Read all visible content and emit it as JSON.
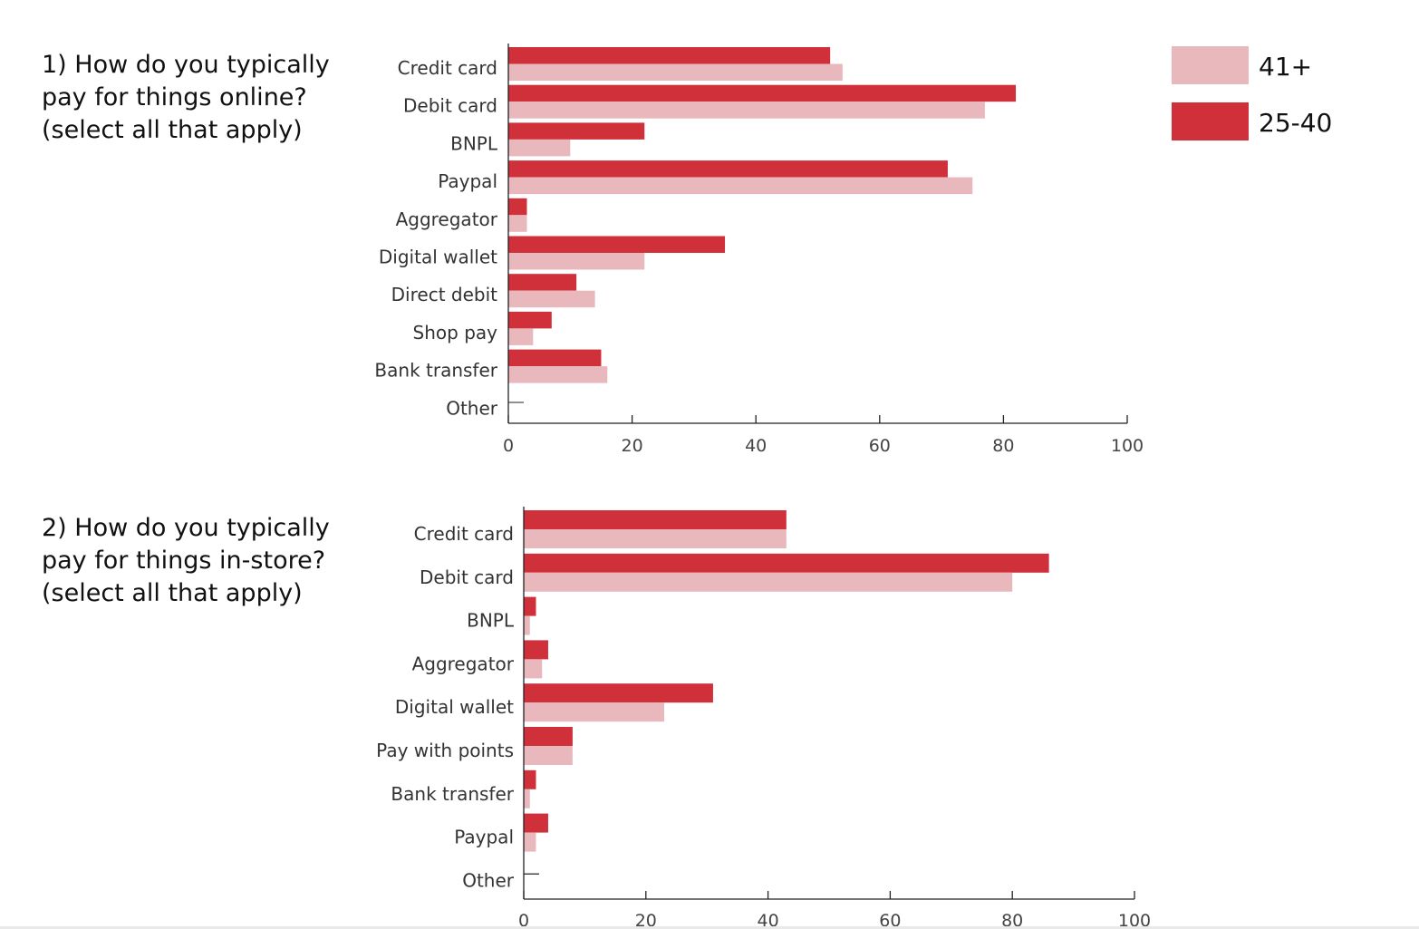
{
  "colors": {
    "series_25_40": "#d0303a",
    "series_41_plus": "#e8b8bd",
    "axis": "#222222"
  },
  "legend": [
    {
      "label": "41+",
      "color": "#e8b8bd"
    },
    {
      "label": "25-40",
      "color": "#d0303a"
    }
  ],
  "chart_data": [
    {
      "type": "bar",
      "orientation": "horizontal",
      "title_lines": [
        "1) How do you typically",
        "pay for things online?",
        "(select all that apply)"
      ],
      "categories": [
        "Credit card",
        "Debit card",
        "BNPL",
        "Paypal",
        "Aggregator",
        "Digital wallet",
        "Direct debit",
        "Shop pay",
        "Bank transfer",
        "Other"
      ],
      "series": [
        {
          "name": "25-40",
          "values": [
            52,
            82,
            22,
            71,
            3,
            35,
            11,
            7,
            15,
            0
          ]
        },
        {
          "name": "41+",
          "values": [
            54,
            77,
            10,
            75,
            3,
            22,
            14,
            4,
            16,
            0
          ]
        }
      ],
      "xlim": [
        0,
        100
      ],
      "xticks": [
        "0",
        "20",
        "40",
        "60",
        "80",
        "100"
      ],
      "grid": false,
      "legend_position": "top-right"
    },
    {
      "type": "bar",
      "orientation": "horizontal",
      "title_lines": [
        "2) How do you typically",
        "pay for things in-store?",
        "(select all that apply)"
      ],
      "categories": [
        "Credit card",
        "Debit card",
        "BNPL",
        "Aggregator",
        "Digital wallet",
        "Pay with points",
        "Bank transfer",
        "Paypal",
        "Other"
      ],
      "series": [
        {
          "name": "25-40",
          "values": [
            43,
            86,
            2,
            4,
            31,
            8,
            2,
            4,
            0
          ]
        },
        {
          "name": "41+",
          "values": [
            43,
            80,
            1,
            3,
            23,
            8,
            1,
            2,
            0
          ]
        }
      ],
      "xlim": [
        0,
        100
      ],
      "xticks": [
        "0",
        "20",
        "40",
        "60",
        "80",
        "100"
      ],
      "grid": false
    }
  ]
}
